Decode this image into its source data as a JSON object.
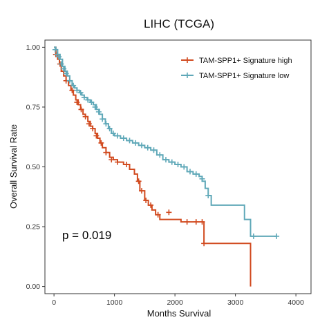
{
  "chart_data": {
    "type": "line",
    "title": "LIHC (TCGA)",
    "xlabel": "Months Survival",
    "ylabel": "Overall Survival Rate",
    "xlim": [
      -150,
      4250
    ],
    "ylim": [
      -0.03,
      1.03
    ],
    "xticks": [
      0,
      1000,
      2000,
      3000,
      4000
    ],
    "yticks": [
      0.0,
      0.25,
      0.5,
      0.75,
      1.0
    ],
    "ytick_labels": [
      "0.00",
      "0.25",
      "0.50",
      "0.75",
      "1.00"
    ],
    "grid": false,
    "legend_position": "top-right",
    "annotation": "p = 0.019",
    "series": [
      {
        "name": "TAM-SPP1+ Signature high",
        "color": "#d14a1f",
        "x": [
          0,
          30,
          60,
          90,
          120,
          160,
          200,
          240,
          280,
          320,
          360,
          400,
          440,
          480,
          520,
          560,
          600,
          640,
          680,
          720,
          760,
          800,
          860,
          920,
          980,
          1050,
          1150,
          1250,
          1330,
          1380,
          1420,
          1500,
          1560,
          1620,
          1680,
          1750,
          2000,
          2100,
          2200,
          2300,
          2430,
          2480,
          3250,
          3250
        ],
        "y": [
          1.0,
          0.97,
          0.95,
          0.93,
          0.9,
          0.88,
          0.86,
          0.84,
          0.82,
          0.8,
          0.78,
          0.76,
          0.74,
          0.72,
          0.71,
          0.69,
          0.67,
          0.66,
          0.64,
          0.62,
          0.6,
          0.58,
          0.56,
          0.54,
          0.53,
          0.52,
          0.51,
          0.49,
          0.47,
          0.44,
          0.4,
          0.36,
          0.34,
          0.32,
          0.3,
          0.28,
          0.28,
          0.27,
          0.27,
          0.27,
          0.27,
          0.18,
          0.18,
          0.0
        ],
        "censor_x": [
          30,
          100,
          200,
          300,
          380,
          450,
          520,
          580,
          640,
          700,
          780,
          860,
          950,
          1050,
          1200,
          1400,
          1450,
          1520,
          1600,
          1720,
          1900,
          2200,
          2350,
          2450,
          2480
        ],
        "censor_y": [
          0.97,
          0.93,
          0.86,
          0.82,
          0.77,
          0.74,
          0.71,
          0.68,
          0.66,
          0.63,
          0.6,
          0.56,
          0.53,
          0.52,
          0.51,
          0.44,
          0.4,
          0.36,
          0.34,
          0.3,
          0.31,
          0.27,
          0.27,
          0.27,
          0.18
        ]
      },
      {
        "name": "TAM-SPP1+ Signature low",
        "color": "#5fa8b8",
        "x": [
          0,
          30,
          60,
          100,
          140,
          180,
          220,
          260,
          300,
          340,
          380,
          420,
          460,
          500,
          550,
          600,
          650,
          700,
          750,
          800,
          850,
          900,
          950,
          1000,
          1100,
          1200,
          1300,
          1400,
          1500,
          1600,
          1700,
          1800,
          1900,
          2000,
          2100,
          2200,
          2300,
          2400,
          2450,
          2500,
          2550,
          2600,
          2800,
          3000,
          3150,
          3250,
          3680
        ],
        "y": [
          1.0,
          0.99,
          0.97,
          0.95,
          0.92,
          0.9,
          0.88,
          0.86,
          0.84,
          0.83,
          0.82,
          0.81,
          0.8,
          0.79,
          0.78,
          0.77,
          0.76,
          0.74,
          0.72,
          0.7,
          0.68,
          0.66,
          0.64,
          0.63,
          0.62,
          0.61,
          0.6,
          0.59,
          0.58,
          0.57,
          0.55,
          0.53,
          0.52,
          0.51,
          0.5,
          0.48,
          0.47,
          0.46,
          0.44,
          0.41,
          0.38,
          0.34,
          0.34,
          0.34,
          0.28,
          0.21,
          0.21
        ],
        "censor_x": [
          20,
          50,
          80,
          120,
          160,
          200,
          260,
          320,
          380,
          440,
          500,
          560,
          620,
          680,
          740,
          800,
          860,
          920,
          980,
          1050,
          1150,
          1250,
          1350,
          1450,
          1550,
          1650,
          1750,
          1850,
          1950,
          2050,
          2150,
          2250,
          2350,
          2450,
          2550,
          3300,
          3680
        ],
        "censor_y": [
          0.99,
          0.97,
          0.96,
          0.93,
          0.91,
          0.89,
          0.86,
          0.84,
          0.82,
          0.81,
          0.79,
          0.78,
          0.77,
          0.75,
          0.73,
          0.7,
          0.68,
          0.66,
          0.64,
          0.63,
          0.62,
          0.61,
          0.6,
          0.59,
          0.58,
          0.57,
          0.55,
          0.53,
          0.52,
          0.51,
          0.5,
          0.48,
          0.47,
          0.45,
          0.38,
          0.21,
          0.21
        ]
      }
    ]
  }
}
